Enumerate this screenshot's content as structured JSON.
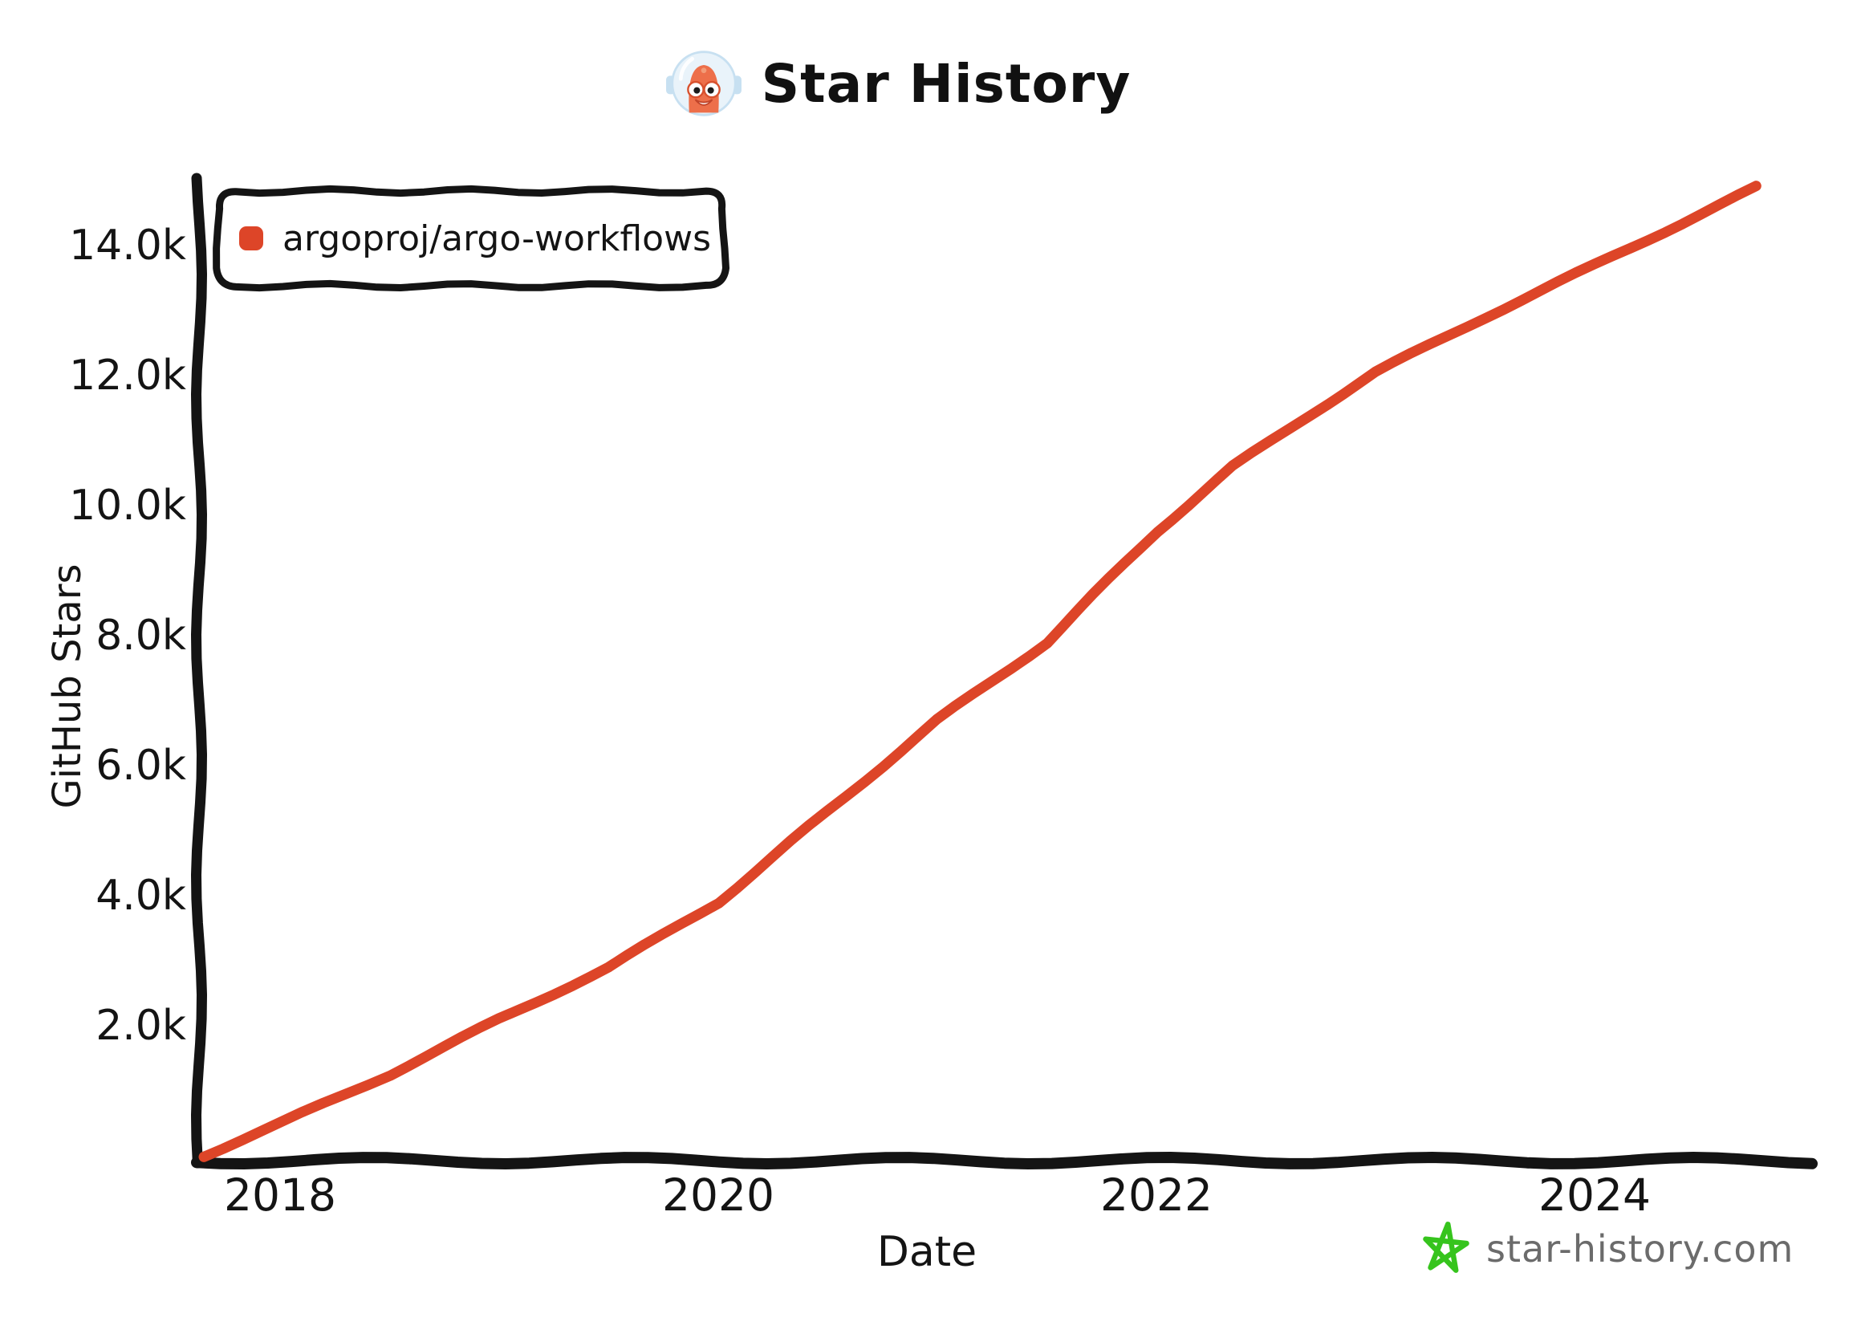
{
  "header": {
    "title": "Star History",
    "logo_icon": "star-history-mascot-icon"
  },
  "footer": {
    "site": "star-history.com",
    "star_icon": "green-star-icon",
    "star_color": "#36c41d",
    "text_color": "#6b6b6b"
  },
  "colors": {
    "background": "#ffffff",
    "axis": "#141414",
    "series_red": "#dd4528"
  },
  "chart_data": {
    "type": "line",
    "title": "Star History",
    "xlabel": "Date",
    "ylabel": "GitHub Stars",
    "grid": false,
    "legend_position": "top-left",
    "x_range": [
      2017.63,
      2024.99
    ],
    "y_range": [
      0,
      15100
    ],
    "x_ticks": [
      {
        "label": "2018",
        "value": 2018
      },
      {
        "label": "2020",
        "value": 2020
      },
      {
        "label": "2022",
        "value": 2022
      },
      {
        "label": "2024",
        "value": 2024
      }
    ],
    "y_ticks": [
      {
        "label": "2.0k",
        "value": 2000
      },
      {
        "label": "4.0k",
        "value": 4000
      },
      {
        "label": "6.0k",
        "value": 6000
      },
      {
        "label": "8.0k",
        "value": 8000
      },
      {
        "label": "10.0k",
        "value": 10000
      },
      {
        "label": "12.0k",
        "value": 12000
      },
      {
        "label": "14.0k",
        "value": 14000
      }
    ],
    "series": [
      {
        "name": "argoproj/argo-workflows",
        "color": "#dd4528",
        "points": [
          [
            2017.65,
            0
          ],
          [
            2018.0,
            500
          ],
          [
            2018.5,
            1250
          ],
          [
            2019.0,
            2100
          ],
          [
            2019.5,
            2900
          ],
          [
            2020.0,
            3900
          ],
          [
            2020.5,
            5300
          ],
          [
            2021.0,
            6700
          ],
          [
            2021.5,
            7900
          ],
          [
            2022.0,
            9600
          ],
          [
            2022.35,
            10600
          ],
          [
            2022.7,
            11400
          ],
          [
            2023.0,
            12050
          ],
          [
            2023.5,
            12900
          ],
          [
            2024.0,
            13700
          ],
          [
            2024.4,
            14350
          ],
          [
            2024.74,
            14900
          ]
        ]
      }
    ]
  }
}
